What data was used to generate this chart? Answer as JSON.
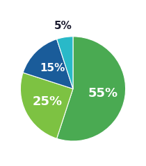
{
  "slices": [
    55,
    25,
    15,
    5
  ],
  "colors": [
    "#4aaa52",
    "#7dc242",
    "#1a5c9a",
    "#29b9c8"
  ],
  "labels": [
    "55%",
    "25%",
    "15%",
    "5%"
  ],
  "label_colors": [
    "white",
    "white",
    "white",
    "#1a1a2e"
  ],
  "figsize": [
    2.1,
    2.4
  ],
  "dpi": 100,
  "bg_color": "#ffffff",
  "label_radii": [
    0.58,
    0.55,
    0.55,
    1.22
  ],
  "fontsizes": [
    13,
    13,
    11,
    11
  ]
}
